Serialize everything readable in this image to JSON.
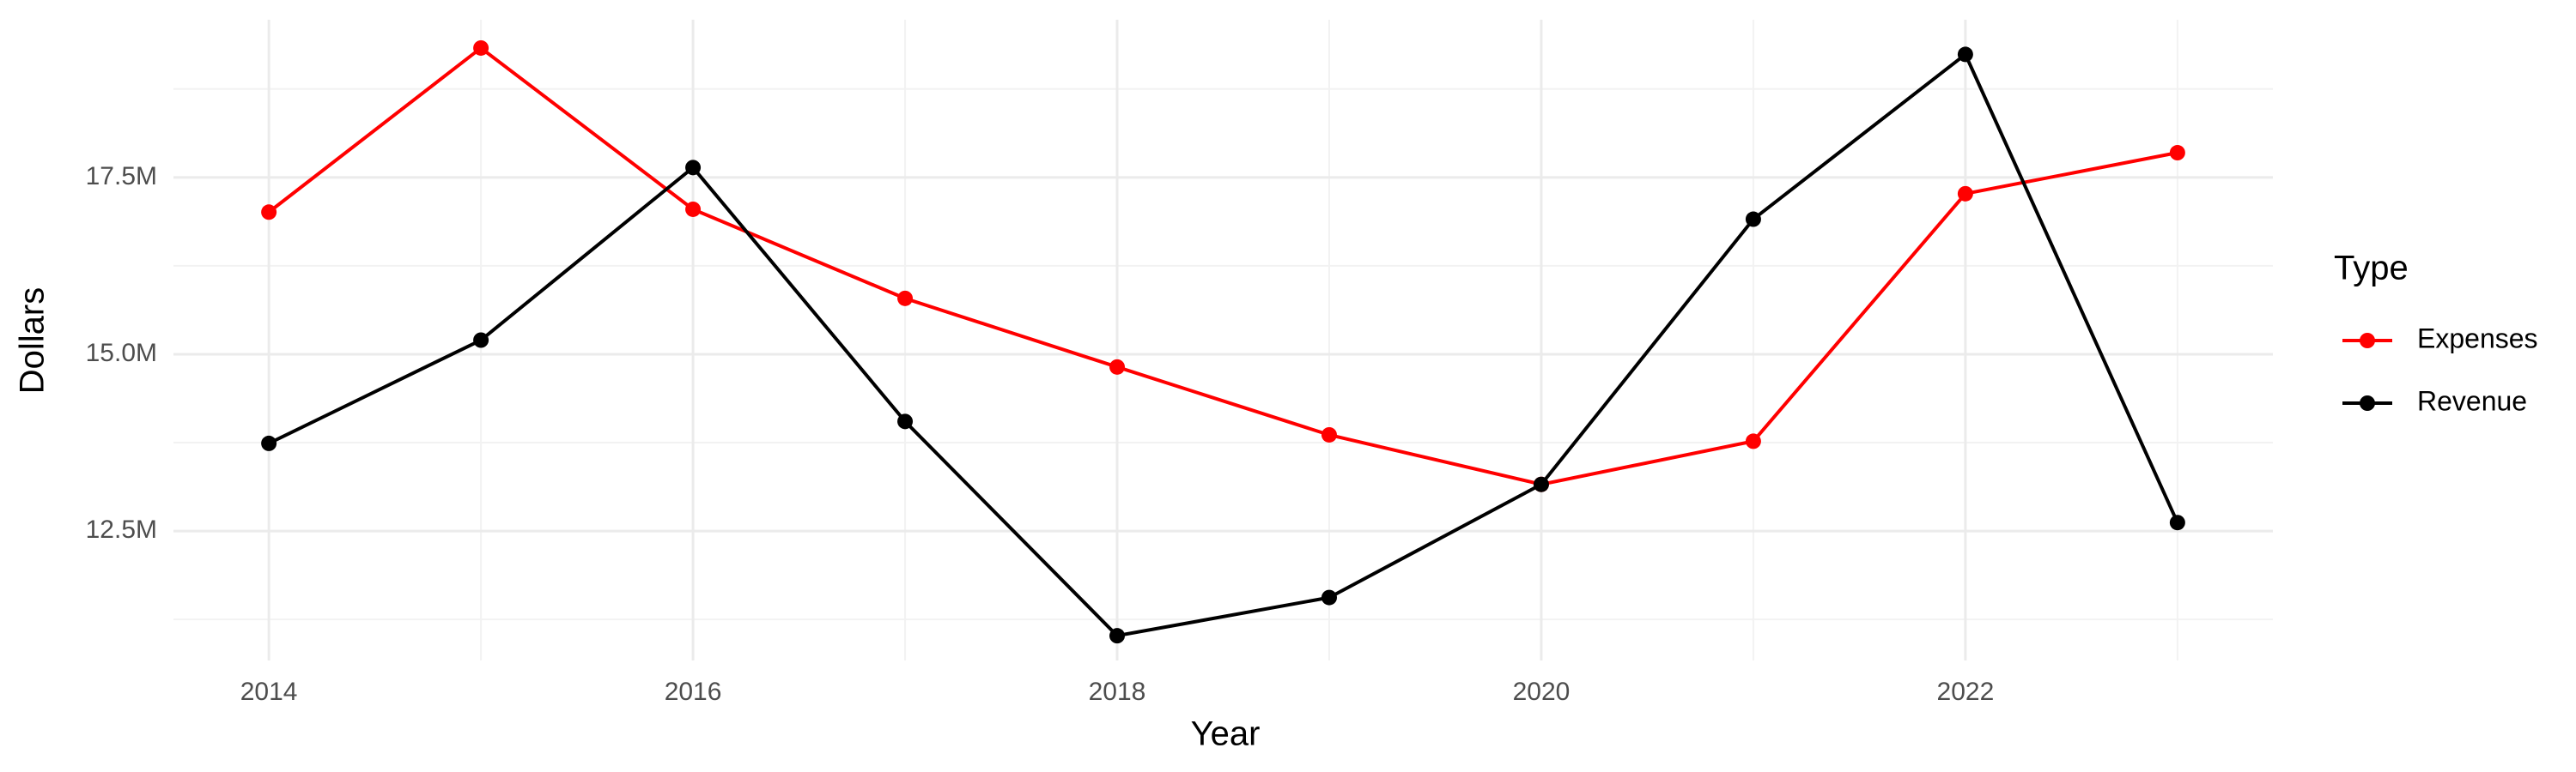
{
  "chart_data": {
    "type": "line",
    "x_label": "Year",
    "y_label": "Dollars",
    "x": [
      2014,
      2015,
      2016,
      2017,
      2018,
      2019,
      2020,
      2021,
      2022,
      2023
    ],
    "series": [
      {
        "name": "Expenses",
        "color": "#ff0000",
        "values": [
          17010000,
          19330000,
          17050000,
          15790000,
          14820000,
          13860000,
          13160000,
          13770000,
          17270000,
          17850000
        ]
      },
      {
        "name": "Revenue",
        "color": "#000000",
        "values": [
          13740000,
          15200000,
          17640000,
          14050000,
          11020000,
          11560000,
          13160000,
          16910000,
          19240000,
          12620000
        ]
      }
    ],
    "xlim": [
      2013.55,
      2023.45
    ],
    "xticks": [
      2014,
      2016,
      2018,
      2020,
      2022
    ],
    "ylim": [
      10670000,
      19730000
    ],
    "yticks": [
      {
        "value": 12500000,
        "label": "12.5M"
      },
      {
        "value": 15000000,
        "label": "15.0M"
      },
      {
        "value": 17500000,
        "label": "17.5M"
      }
    ],
    "grid": true,
    "legend_title": "Type",
    "legend_position": "right"
  }
}
